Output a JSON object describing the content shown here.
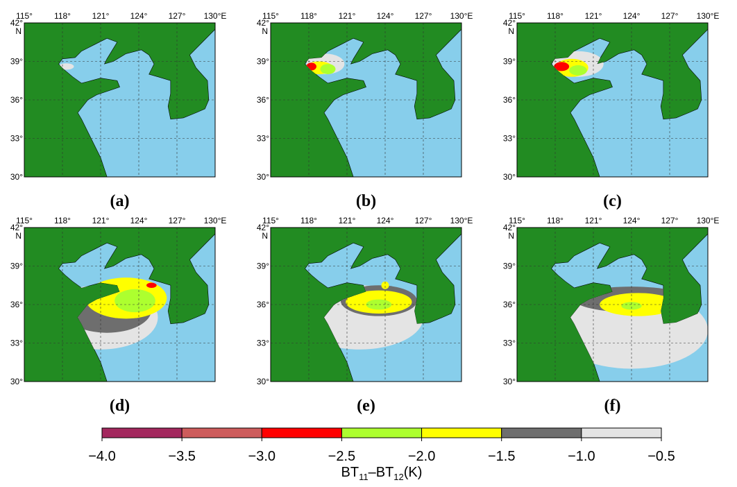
{
  "panels": [
    {
      "label": "(a)"
    },
    {
      "label": "(b)"
    },
    {
      "label": "(c)"
    },
    {
      "label": "(d)"
    },
    {
      "label": "(e)"
    },
    {
      "label": "(f)"
    }
  ],
  "map": {
    "lon_range": [
      115,
      130
    ],
    "lat_range": [
      30,
      42
    ],
    "lon_ticks": [
      {
        "value": 115,
        "label": "115°"
      },
      {
        "value": 118,
        "label": "118°"
      },
      {
        "value": 121,
        "label": "121°"
      },
      {
        "value": 124,
        "label": "124°"
      },
      {
        "value": 127,
        "label": "127°"
      },
      {
        "value": 130,
        "label": "130°E"
      }
    ],
    "lat_ticks": [
      {
        "value": 42,
        "label": "42°"
      },
      {
        "value": 39,
        "label": "39°"
      },
      {
        "value": 36,
        "label": "36°"
      },
      {
        "value": 33,
        "label": "33°"
      },
      {
        "value": 30,
        "label": "30°"
      }
    ],
    "lat_hemisphere": "N",
    "land_color": "#228b22",
    "sea_color": "#87ceeb"
  },
  "colorbar": {
    "colors": [
      "#a3285e",
      "#cd5c5c",
      "#ff0000",
      "#adff2f",
      "#ffff00",
      "#6e6e6e",
      "#e4e4e4"
    ],
    "ticks": [
      {
        "value": -4.0,
        "label": "−4.0"
      },
      {
        "value": -3.5,
        "label": "−3.5"
      },
      {
        "value": -3.0,
        "label": "−3.0"
      },
      {
        "value": -2.5,
        "label": "−2.5"
      },
      {
        "value": -2.0,
        "label": "−2.0"
      },
      {
        "value": -1.5,
        "label": "−1.5"
      },
      {
        "value": -1.0,
        "label": "−1.0"
      },
      {
        "value": -0.5,
        "label": "−0.5"
      }
    ],
    "label": {
      "base1": "BT",
      "sub1": "11",
      "base2": "–BT",
      "sub2": "12",
      "unit": "(K)"
    }
  }
}
